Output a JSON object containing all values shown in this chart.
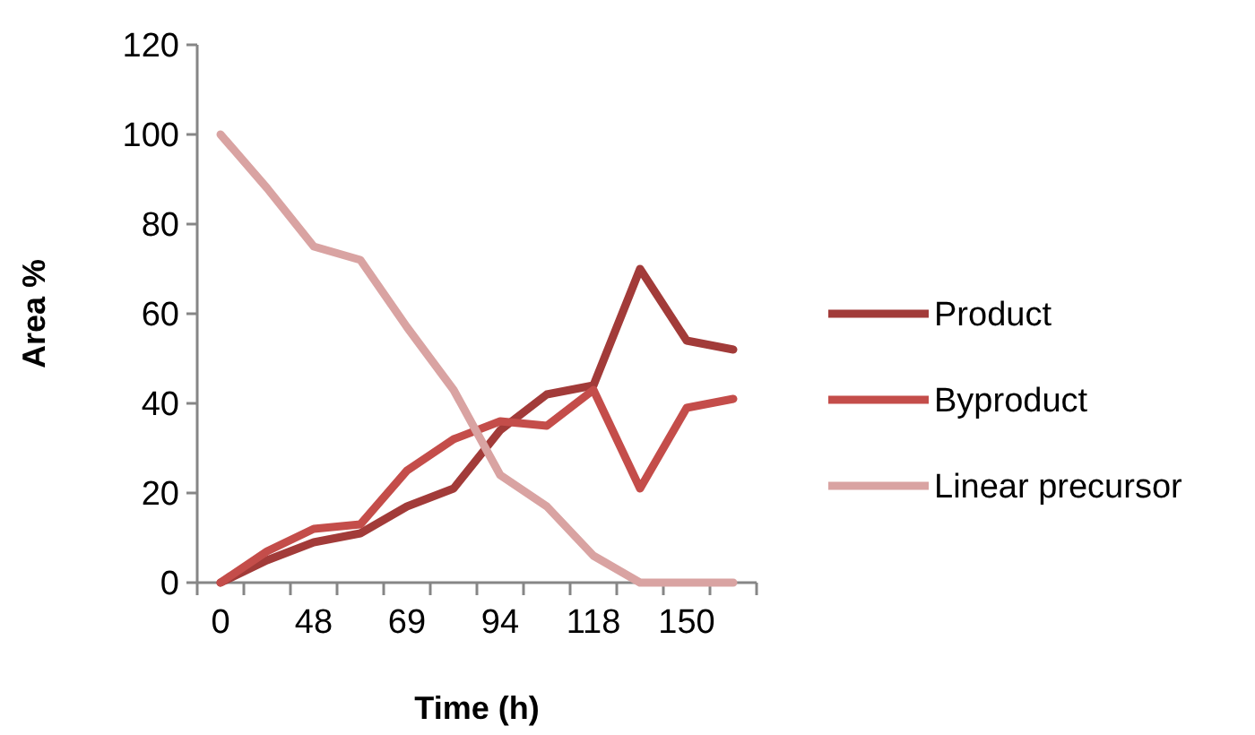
{
  "chart_data": {
    "type": "line",
    "xlabel": "Time (h)",
    "ylabel": "Area %",
    "categories": [
      "0",
      null,
      "48",
      null,
      "69",
      null,
      "94",
      null,
      "118",
      null,
      "150",
      null
    ],
    "ylim": [
      0,
      120
    ],
    "yticks": [
      0,
      20,
      40,
      60,
      80,
      100,
      120
    ],
    "grid": false,
    "legend": "right",
    "marker": "none",
    "line_style": "solid",
    "series": [
      {
        "name": "Product",
        "color": "#a23b39",
        "values": [
          0,
          5,
          9,
          11,
          17,
          21,
          34,
          42,
          44,
          70,
          54,
          52
        ]
      },
      {
        "name": "Byproduct",
        "color": "#c44d4a",
        "values": [
          0,
          7,
          12,
          13,
          25,
          32,
          36,
          35,
          43,
          21,
          39,
          41
        ]
      },
      {
        "name": "Linear precursor",
        "color": "#d9a3a2",
        "values": [
          100,
          88,
          75,
          72,
          57,
          43,
          24,
          17,
          6,
          0,
          0,
          0
        ]
      }
    ]
  }
}
